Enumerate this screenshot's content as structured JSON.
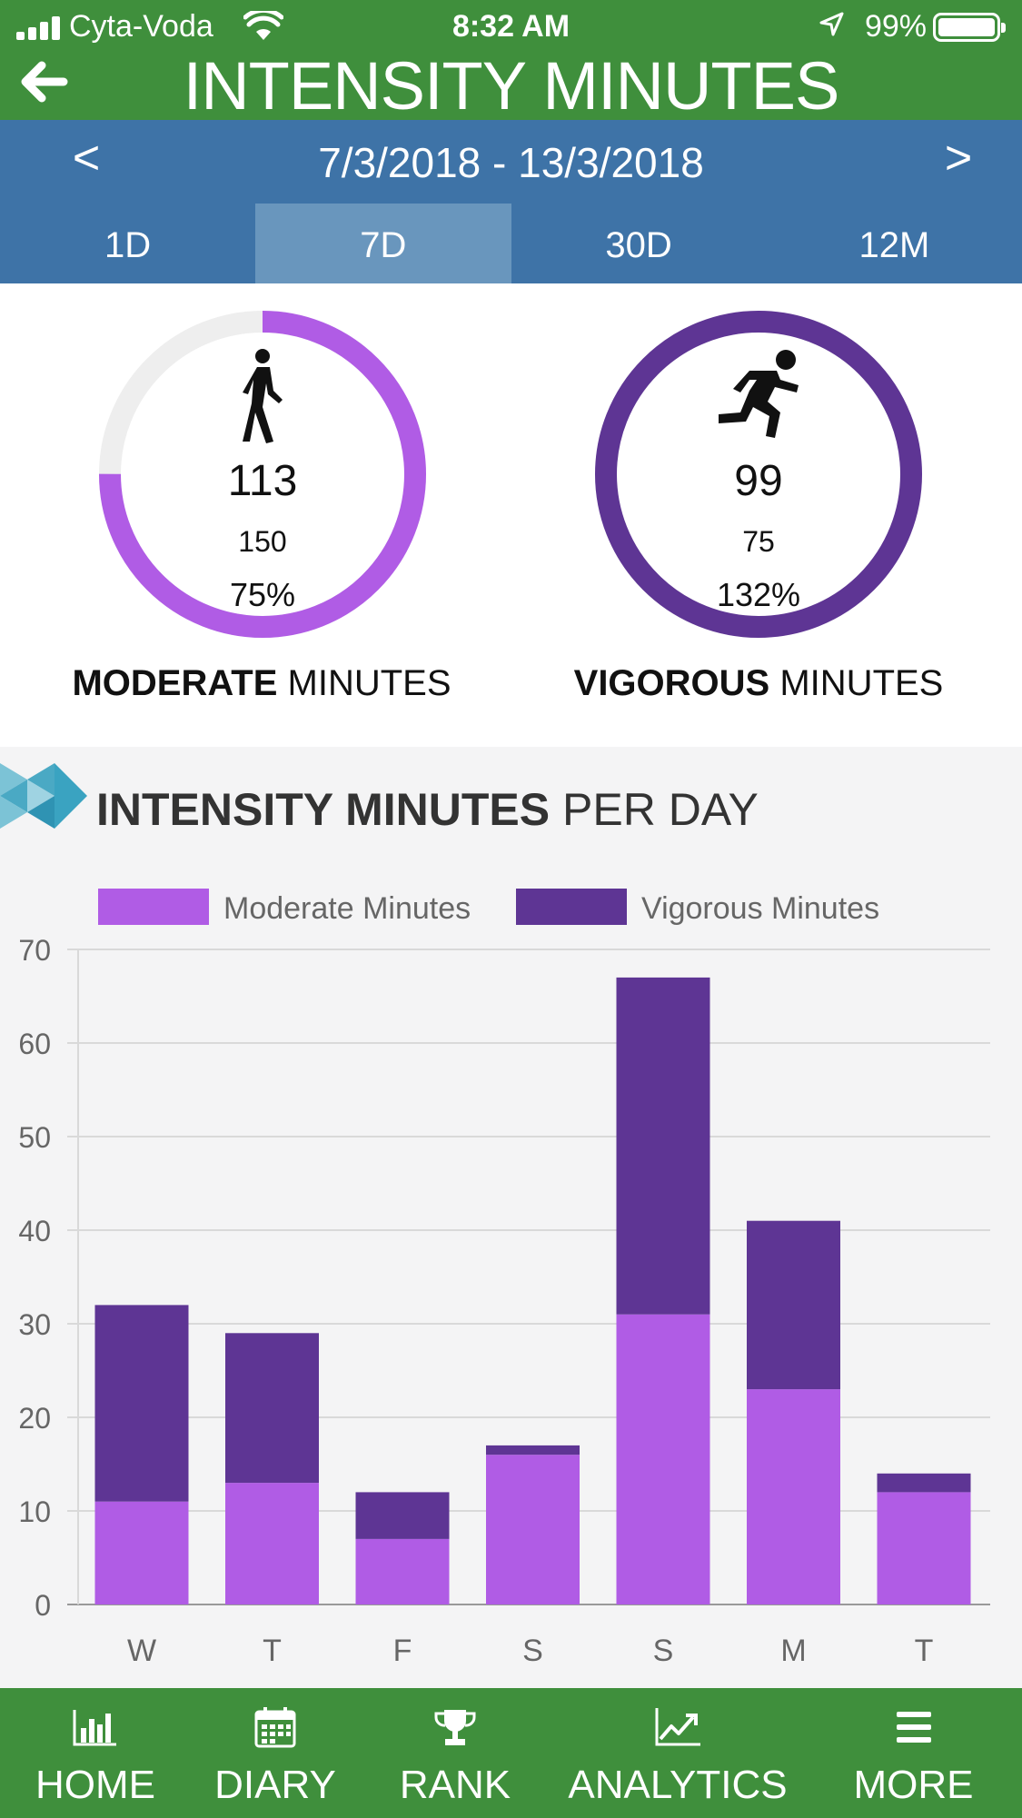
{
  "status": {
    "carrier": "Cyta-Voda",
    "time": "8:32 AM",
    "battery": "99%"
  },
  "header": {
    "title": "INTENSITY MINUTES"
  },
  "range": {
    "prev": "<",
    "next": ">",
    "label": "7/3/2018 - 13/3/2018"
  },
  "tabs": [
    {
      "label": "1D",
      "active": false
    },
    {
      "label": "7D",
      "active": true
    },
    {
      "label": "30D",
      "active": false
    },
    {
      "label": "12M",
      "active": false
    }
  ],
  "summary": {
    "moderate": {
      "value": "113",
      "goal": "150",
      "percent": "75%",
      "label_bold": "MODERATE",
      "label_rest": "MINUTES",
      "color": "#b05ce5",
      "fraction": 0.75
    },
    "vigorous": {
      "value": "99",
      "goal": "75",
      "percent": "132%",
      "label_bold": "VIGOROUS",
      "label_rest": "MINUTES",
      "color": "#5e3594",
      "fraction": 1.0
    }
  },
  "section": {
    "title_bold": "INTENSITY MINUTES",
    "title_rest": "PER DAY"
  },
  "chart_data": {
    "type": "bar",
    "stacked": true,
    "categories": [
      "W",
      "T",
      "F",
      "S",
      "S",
      "M",
      "T"
    ],
    "series": [
      {
        "name": "Moderate Minutes",
        "color": "#b05ce5",
        "values": [
          11,
          13,
          7,
          16,
          31,
          23,
          12
        ]
      },
      {
        "name": "Vigorous Minutes",
        "color": "#5e3594",
        "values": [
          21,
          16,
          5,
          1,
          36,
          18,
          2
        ]
      }
    ],
    "ylim": [
      0,
      70
    ],
    "yticks": [
      0,
      10,
      20,
      30,
      40,
      50,
      60,
      70
    ],
    "grid": true,
    "legend": "top"
  },
  "nav": [
    {
      "label": "HOME",
      "icon": "bar-chart-icon"
    },
    {
      "label": "DIARY",
      "icon": "calendar-icon"
    },
    {
      "label": "RANK",
      "icon": "trophy-icon"
    },
    {
      "label": "ANALYTICS",
      "icon": "trend-icon"
    },
    {
      "label": "MORE",
      "icon": "menu-icon"
    }
  ]
}
